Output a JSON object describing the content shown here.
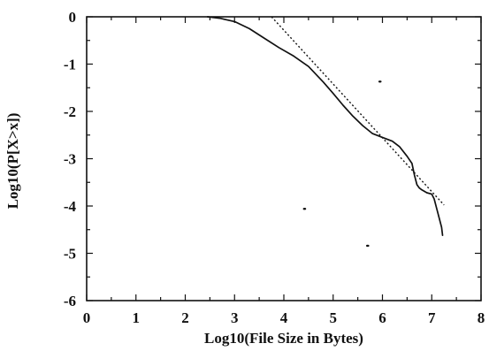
{
  "chart_data": {
    "type": "line",
    "title": "",
    "xlabel": "Log10(File Size in Bytes)",
    "ylabel": "Log10(P[X>x])",
    "xlim": [
      0,
      8
    ],
    "ylim": [
      -6,
      0
    ],
    "x_ticks": [
      "0",
      "1",
      "2",
      "3",
      "4",
      "5",
      "6",
      "7",
      "8"
    ],
    "y_ticks": [
      "0",
      "-1",
      "-2",
      "-3",
      "-4",
      "-5",
      "-6"
    ],
    "grid": false,
    "legend": "none",
    "series": [
      {
        "style": "solid",
        "x": [
          2.45,
          2.7,
          3.0,
          3.3,
          3.6,
          3.9,
          4.2,
          4.5,
          4.8,
          5.0,
          5.2,
          5.4,
          5.6,
          5.8,
          6.0,
          6.2,
          6.35,
          6.5,
          6.6,
          6.65,
          6.7,
          6.75,
          6.8,
          6.9,
          7.0,
          7.05,
          7.1,
          7.15,
          7.2,
          7.22
        ],
        "y": [
          0.0,
          -0.03,
          -0.1,
          -0.25,
          -0.45,
          -0.65,
          -0.83,
          -1.05,
          -1.38,
          -1.62,
          -1.87,
          -2.1,
          -2.3,
          -2.47,
          -2.55,
          -2.63,
          -2.75,
          -2.95,
          -3.1,
          -3.35,
          -3.55,
          -3.62,
          -3.66,
          -3.72,
          -3.75,
          -3.85,
          -4.05,
          -4.25,
          -4.45,
          -4.62
        ]
      },
      {
        "style": "dotted",
        "x": [
          3.75,
          7.25
        ],
        "y": [
          0.0,
          -3.98
        ]
      }
    ],
    "specks": [
      {
        "x": 5.95,
        "y": -1.37
      },
      {
        "x": 4.42,
        "y": -4.06
      },
      {
        "x": 5.7,
        "y": -4.84
      }
    ]
  }
}
